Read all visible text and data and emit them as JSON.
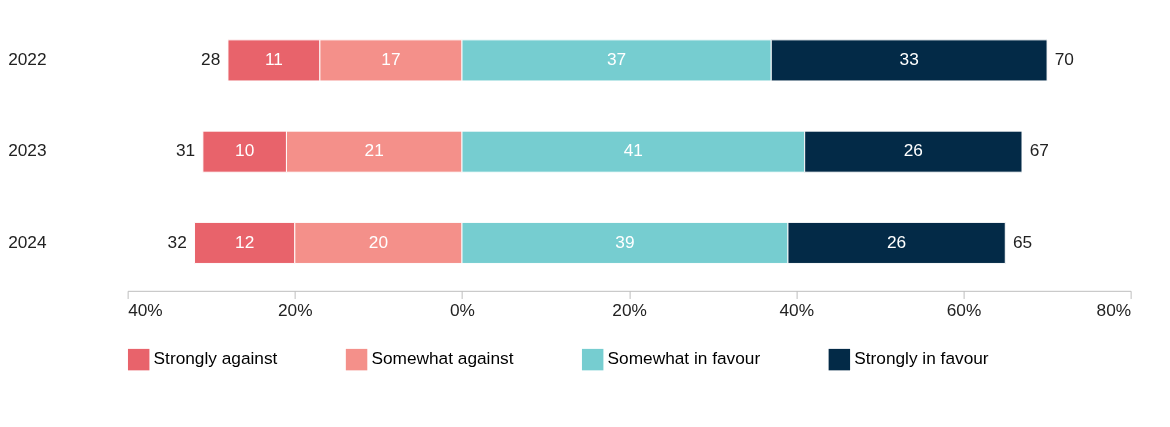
{
  "chart_data": {
    "type": "bar",
    "orientation": "horizontal",
    "categories": [
      "2022",
      "2023",
      "2024"
    ],
    "series": [
      {
        "name": "Strongly against",
        "color": "#e8636b",
        "values": [
          11,
          10,
          12
        ],
        "base": [
          -28,
          -31,
          -32
        ]
      },
      {
        "name": "Somewhat against",
        "color": "#f4908a",
        "values": [
          17,
          21,
          20
        ],
        "base": [
          -17,
          -21,
          -20
        ]
      },
      {
        "name": "Somewhat in favour",
        "color": "#76cdd0",
        "values": [
          37,
          41,
          39
        ],
        "base": [
          0,
          0,
          0
        ]
      },
      {
        "name": "Strongly in favour",
        "color": "#032a47",
        "values": [
          33,
          26,
          26
        ],
        "base": [
          37,
          41,
          39
        ]
      }
    ],
    "data_labels": true,
    "xlim": [
      -40,
      80
    ],
    "xticks": [
      {
        "value": -40,
        "label": "40%"
      },
      {
        "value": -20,
        "label": "20%"
      },
      {
        "value": 0,
        "label": "0%"
      },
      {
        "value": 20,
        "label": "20%"
      },
      {
        "value": 40,
        "label": "40%"
      },
      {
        "value": 60,
        "label": "60%"
      },
      {
        "value": 80,
        "label": "80%"
      }
    ],
    "annotations": [
      {
        "text": "28",
        "x": -28,
        "y": "2022"
      },
      {
        "text": "70",
        "x": 70,
        "y": "2022"
      },
      {
        "text": "31",
        "x": -31,
        "y": "2023"
      },
      {
        "text": "67",
        "x": 67,
        "y": "2023"
      },
      {
        "text": "32",
        "x": -32,
        "y": "2024"
      },
      {
        "text": "65",
        "x": 65,
        "y": "2024"
      }
    ],
    "grid": false,
    "legend": "bottom"
  }
}
